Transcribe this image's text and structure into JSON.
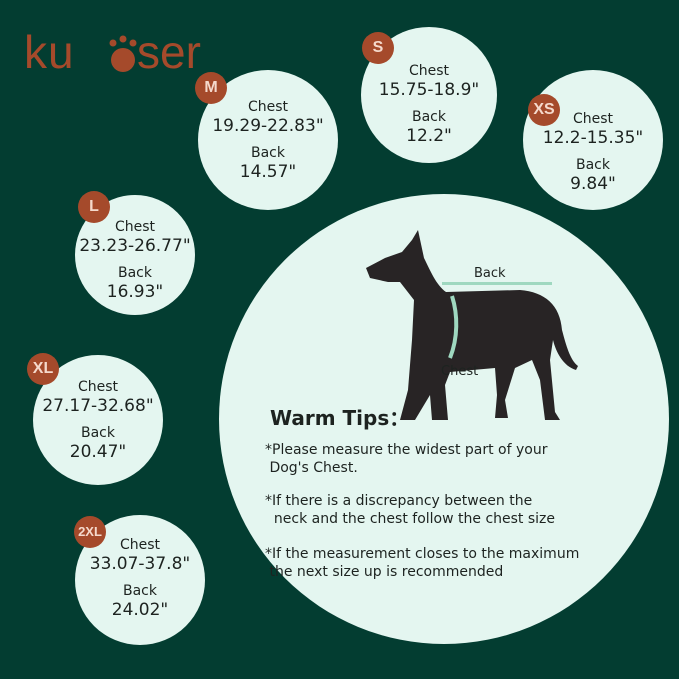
{
  "brand": {
    "logo_text": "kuoser",
    "color": "#a54a2b"
  },
  "colors": {
    "background": "#033d31",
    "circle": "#e4f6f0",
    "badge": "#a54a2b"
  },
  "sizes": [
    {
      "size": "S",
      "chest_label": "Chest",
      "chest": "15.75-18.9\"",
      "back_label": "Back",
      "back": "12.2\""
    },
    {
      "size": "M",
      "chest_label": "Chest",
      "chest": "19.29-22.83\"",
      "back_label": "Back",
      "back": "14.57\""
    },
    {
      "size": "XS",
      "chest_label": "Chest",
      "chest": "12.2-15.35\"",
      "back_label": "Back",
      "back": "9.84\""
    },
    {
      "size": "L",
      "chest_label": "Chest",
      "chest": "23.23-26.77\"",
      "back_label": "Back",
      "back": "16.93\""
    },
    {
      "size": "XL",
      "chest_label": "Chest",
      "chest": "27.17-32.68\"",
      "back_label": "Back",
      "back": "20.47\""
    },
    {
      "size": "2XL",
      "chest_label": "Chest",
      "chest": "33.07-37.8\"",
      "back_label": "Back",
      "back": "24.02\""
    }
  ],
  "diagram": {
    "back_label": "Back",
    "chest_label": "Chest"
  },
  "tips": {
    "title": "Warm Tips：",
    "items": [
      [
        "*Please measure the widest part of your",
        " Dog's Chest."
      ],
      [
        "*If there is a discrepancy between the",
        "  neck and the chest follow the chest size"
      ],
      [
        "*If the measurement closes to the maximum",
        " the next size up is recommended"
      ]
    ]
  }
}
